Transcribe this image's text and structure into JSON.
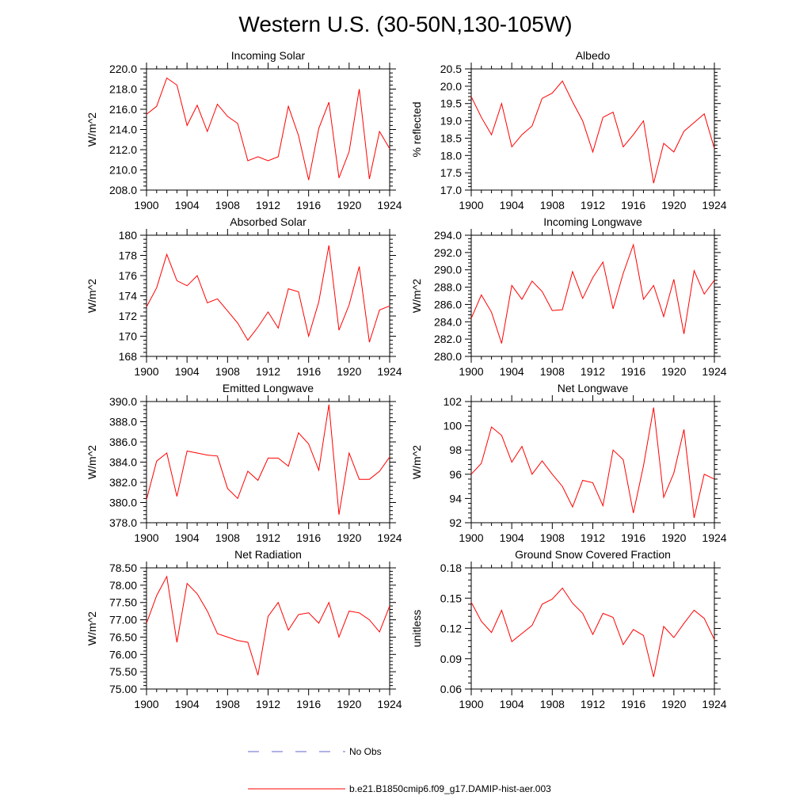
{
  "figure": {
    "title": "Western U.S. (30-50N,130-105W)"
  },
  "legend": {
    "entries": [
      {
        "label": "No Obs",
        "color": "#6666cc",
        "style": "dashed"
      },
      {
        "label": "b.e21.B1850cmip6.f09_g17.DAMIP-hist-aer.003",
        "color": "#ff0000",
        "style": "solid"
      }
    ]
  },
  "chart_data": [
    {
      "type": "line",
      "title": "Incoming Solar",
      "ylabel": "W/m^2",
      "xlim": [
        1900,
        1924
      ],
      "ylim": [
        208,
        220
      ],
      "xticks": [
        1900,
        1904,
        1908,
        1912,
        1916,
        1920,
        1924
      ],
      "yticks": [
        "208.0",
        "210.0",
        "212.0",
        "214.0",
        "216.0",
        "218.0",
        "220.0"
      ],
      "color": "#ff0000",
      "x": [
        1900,
        1901,
        1902,
        1903,
        1904,
        1905,
        1906,
        1907,
        1908,
        1909,
        1910,
        1911,
        1912,
        1913,
        1914,
        1915,
        1916,
        1917,
        1918,
        1919,
        1920,
        1921,
        1922,
        1923,
        1924
      ],
      "values": [
        215.5,
        216.3,
        219.1,
        218.4,
        214.4,
        216.4,
        213.8,
        216.5,
        215.3,
        214.6,
        210.9,
        211.3,
        210.9,
        211.3,
        216.3,
        213.4,
        209.0,
        214.1,
        216.7,
        209.2,
        211.8,
        218.0,
        209.1,
        213.8,
        212.1
      ]
    },
    {
      "type": "line",
      "title": "Albedo",
      "ylabel": "% reflected",
      "xlim": [
        1900,
        1924
      ],
      "ylim": [
        17,
        20.5
      ],
      "xticks": [
        1900,
        1904,
        1908,
        1912,
        1916,
        1920,
        1924
      ],
      "yticks": [
        "17.0",
        "17.5",
        "18.0",
        "18.5",
        "19.0",
        "19.5",
        "20.0",
        "20.5"
      ],
      "color": "#ff0000",
      "x": [
        1900,
        1901,
        1902,
        1903,
        1904,
        1905,
        1906,
        1907,
        1908,
        1909,
        1910,
        1911,
        1912,
        1913,
        1914,
        1915,
        1916,
        1917,
        1918,
        1919,
        1920,
        1921,
        1922,
        1923,
        1924
      ],
      "values": [
        19.7,
        19.1,
        18.6,
        19.5,
        18.25,
        18.6,
        18.85,
        19.65,
        19.8,
        20.15,
        19.55,
        19.0,
        18.1,
        19.1,
        19.25,
        18.25,
        18.6,
        19.0,
        17.2,
        18.35,
        18.1,
        18.7,
        18.95,
        19.2,
        18.2
      ]
    },
    {
      "type": "line",
      "title": "Absorbed Solar",
      "ylabel": "W/m^2",
      "xlim": [
        1900,
        1924
      ],
      "ylim": [
        168,
        180
      ],
      "xticks": [
        1900,
        1904,
        1908,
        1912,
        1916,
        1920,
        1924
      ],
      "yticks": [
        "168",
        "170",
        "172",
        "174",
        "176",
        "178",
        "180"
      ],
      "color": "#ff0000",
      "x": [
        1900,
        1901,
        1902,
        1903,
        1904,
        1905,
        1906,
        1907,
        1908,
        1909,
        1910,
        1911,
        1912,
        1913,
        1914,
        1915,
        1916,
        1917,
        1918,
        1919,
        1920,
        1921,
        1922,
        1923,
        1924
      ],
      "values": [
        172.9,
        174.8,
        178.1,
        175.5,
        175.0,
        176.0,
        173.3,
        173.7,
        172.5,
        171.3,
        169.6,
        170.9,
        172.4,
        170.8,
        174.7,
        174.4,
        170.0,
        173.4,
        179.0,
        170.6,
        173.1,
        176.9,
        169.4,
        172.6,
        173.0
      ]
    },
    {
      "type": "line",
      "title": "Incoming Longwave",
      "ylabel": "W/m^2",
      "xlim": [
        1900,
        1924
      ],
      "ylim": [
        280,
        294
      ],
      "xticks": [
        1900,
        1904,
        1908,
        1912,
        1916,
        1920,
        1924
      ],
      "yticks": [
        "280.0",
        "282.0",
        "284.0",
        "286.0",
        "288.0",
        "290.0",
        "292.0",
        "294.0"
      ],
      "color": "#ff0000",
      "x": [
        1900,
        1901,
        1902,
        1903,
        1904,
        1905,
        1906,
        1907,
        1908,
        1909,
        1910,
        1911,
        1912,
        1913,
        1914,
        1915,
        1916,
        1917,
        1918,
        1919,
        1920,
        1921,
        1922,
        1923,
        1924
      ],
      "values": [
        284.4,
        287.1,
        285.1,
        281.5,
        288.2,
        286.6,
        288.7,
        287.5,
        285.3,
        285.4,
        289.8,
        286.7,
        289.1,
        290.9,
        285.5,
        289.6,
        292.9,
        286.6,
        288.2,
        284.6,
        288.9,
        282.6,
        289.9,
        287.2,
        288.8
      ]
    },
    {
      "type": "line",
      "title": "Emitted Longwave",
      "ylabel": "W/m^2",
      "xlim": [
        1900,
        1924
      ],
      "ylim": [
        378,
        390
      ],
      "xticks": [
        1900,
        1904,
        1908,
        1912,
        1916,
        1920,
        1924
      ],
      "yticks": [
        "378.0",
        "380.0",
        "382.0",
        "384.0",
        "386.0",
        "388.0",
        "390.0"
      ],
      "color": "#ff0000",
      "x": [
        1900,
        1901,
        1902,
        1903,
        1904,
        1905,
        1906,
        1907,
        1908,
        1909,
        1910,
        1911,
        1912,
        1913,
        1914,
        1915,
        1916,
        1917,
        1918,
        1919,
        1920,
        1921,
        1922,
        1923,
        1924
      ],
      "values": [
        380.3,
        384.1,
        384.9,
        380.6,
        385.1,
        384.9,
        384.7,
        384.6,
        381.4,
        380.4,
        383.1,
        382.2,
        384.4,
        384.4,
        383.6,
        386.9,
        385.8,
        383.2,
        389.7,
        378.8,
        384.9,
        382.3,
        382.3,
        383.1,
        384.5
      ]
    },
    {
      "type": "line",
      "title": "Net Longwave",
      "ylabel": "W/m^2",
      "xlim": [
        1900,
        1924
      ],
      "ylim": [
        92,
        102
      ],
      "xticks": [
        1900,
        1904,
        1908,
        1912,
        1916,
        1920,
        1924
      ],
      "yticks": [
        "92",
        "94",
        "96",
        "98",
        "100",
        "102"
      ],
      "color": "#ff0000",
      "x": [
        1900,
        1901,
        1902,
        1903,
        1904,
        1905,
        1906,
        1907,
        1908,
        1909,
        1910,
        1911,
        1912,
        1913,
        1914,
        1915,
        1916,
        1917,
        1918,
        1919,
        1920,
        1921,
        1922,
        1923,
        1924
      ],
      "values": [
        96.0,
        96.9,
        99.9,
        99.2,
        97.0,
        98.3,
        96.0,
        97.1,
        96.0,
        95.0,
        93.3,
        95.5,
        95.3,
        93.4,
        98.0,
        97.2,
        92.8,
        96.7,
        101.5,
        94.1,
        96.1,
        99.7,
        92.4,
        96.0,
        95.6
      ]
    },
    {
      "type": "line",
      "title": "Net Radiation",
      "ylabel": "W/m^2",
      "xlim": [
        1900,
        1924
      ],
      "ylim": [
        75,
        78.5
      ],
      "xticks": [
        1900,
        1904,
        1908,
        1912,
        1916,
        1920,
        1924
      ],
      "yticks": [
        "75.00",
        "75.50",
        "76.00",
        "76.50",
        "77.00",
        "77.50",
        "78.00",
        "78.50"
      ],
      "color": "#ff0000",
      "x": [
        1900,
        1901,
        1902,
        1903,
        1904,
        1905,
        1906,
        1907,
        1908,
        1909,
        1910,
        1911,
        1912,
        1913,
        1914,
        1915,
        1916,
        1917,
        1918,
        1919,
        1920,
        1921,
        1922,
        1923,
        1924
      ],
      "values": [
        76.9,
        77.7,
        78.25,
        76.35,
        78.05,
        77.75,
        77.25,
        76.6,
        76.5,
        76.4,
        76.35,
        75.4,
        77.1,
        77.5,
        76.7,
        77.15,
        77.2,
        76.9,
        77.5,
        76.5,
        77.25,
        77.2,
        77.0,
        76.65,
        77.4
      ]
    },
    {
      "type": "line",
      "title": "Ground Snow Covered Fraction",
      "ylabel": "unitless",
      "xlim": [
        1900,
        1924
      ],
      "ylim": [
        0.06,
        0.18
      ],
      "xticks": [
        1900,
        1904,
        1908,
        1912,
        1916,
        1920,
        1924
      ],
      "yticks": [
        "0.06",
        "0.09",
        "0.12",
        "0.15",
        "0.18"
      ],
      "color": "#ff0000",
      "x": [
        1900,
        1901,
        1902,
        1903,
        1904,
        1905,
        1906,
        1907,
        1908,
        1909,
        1910,
        1911,
        1912,
        1913,
        1914,
        1915,
        1916,
        1917,
        1918,
        1919,
        1920,
        1921,
        1922,
        1923,
        1924
      ],
      "values": [
        0.146,
        0.127,
        0.116,
        0.138,
        0.107,
        0.115,
        0.123,
        0.144,
        0.149,
        0.16,
        0.145,
        0.135,
        0.114,
        0.135,
        0.131,
        0.104,
        0.119,
        0.113,
        0.072,
        0.122,
        0.111,
        0.125,
        0.138,
        0.13,
        0.109
      ]
    }
  ]
}
